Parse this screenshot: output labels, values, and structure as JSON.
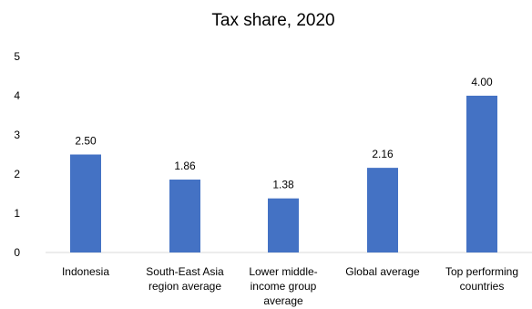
{
  "chart_data": {
    "type": "bar",
    "title": "Tax share, 2020",
    "categories": [
      [
        "Indonesia"
      ],
      [
        "South-East Asia",
        "region average"
      ],
      [
        "Lower middle-",
        "income group",
        "average"
      ],
      [
        "Global average"
      ],
      [
        "Top performing",
        "countries"
      ]
    ],
    "values": [
      2.5,
      1.86,
      1.38,
      2.16,
      4.0
    ],
    "value_labels": [
      "2.50",
      "1.86",
      "1.38",
      "2.16",
      "4.00"
    ],
    "yticks": [
      "0",
      "1",
      "2",
      "3",
      "4",
      "5"
    ],
    "ylim": [
      0,
      5
    ],
    "grid": false,
    "legend": "none",
    "colors": {
      "bar": "#4472c4",
      "axis": "#d9d9d9",
      "text": "#000000"
    }
  }
}
